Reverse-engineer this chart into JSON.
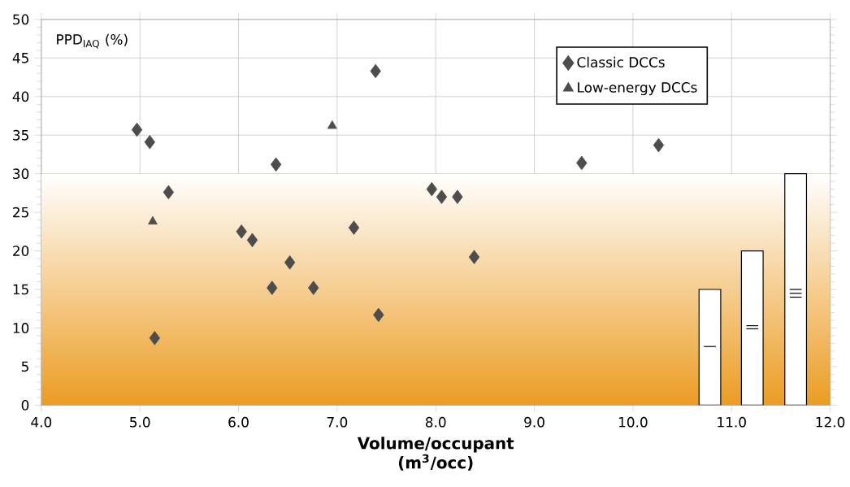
{
  "chart_data": {
    "type": "scatter",
    "xlabel": "Volume/occupant (m$^{3}$/occ)",
    "ylabel": "PPD$_{IAQ}$ (%)",
    "xlim": [
      4,
      12
    ],
    "ylim": [
      0,
      50
    ],
    "xticks": [
      {
        "value": 4,
        "label": "4.0"
      },
      {
        "value": 5,
        "label": "5.0"
      },
      {
        "value": 6,
        "label": "6.0"
      },
      {
        "value": 7,
        "label": "7.0"
      },
      {
        "value": 8,
        "label": "8.0"
      },
      {
        "value": 9,
        "label": "9.0"
      },
      {
        "value": 10,
        "label": "10.0"
      },
      {
        "value": 11,
        "label": "11.0"
      },
      {
        "value": 12,
        "label": "12.0"
      }
    ],
    "yticks": [
      0,
      5,
      10,
      15,
      20,
      25,
      30,
      35,
      40,
      45,
      50
    ],
    "grid": true,
    "legend": "top right",
    "bands": [
      {
        "axis": "y",
        "from": 0,
        "to": 30,
        "color": "#eb9c22"
      }
    ],
    "series": [
      {
        "name": "Classic DCCs",
        "color": "#4d4d4d",
        "marker": "diamond",
        "x": [
          4.97,
          5.1,
          5.29,
          5.15,
          6.03,
          6.14,
          6.38,
          6.52,
          6.34,
          6.76,
          7.17,
          7.39,
          7.42,
          7.96,
          8.06,
          8.22,
          8.39,
          9.48,
          10.26
        ],
        "values": [
          35.7,
          34.1,
          27.6,
          8.7,
          22.5,
          21.4,
          31.2,
          18.5,
          15.2,
          15.2,
          23.0,
          43.3,
          11.7,
          28.0,
          27.0,
          27.0,
          19.2,
          31.4,
          33.7
        ]
      },
      {
        "name": "Low-energy DCCs",
        "color": "#4d4d4d",
        "marker": "triangle",
        "x": [
          6.95,
          5.13
        ],
        "values": [
          36.2,
          23.8
        ]
      },
      {
        "type": "bar",
        "color": "#ffffff",
        "x": [
          10.78,
          11.21,
          11.65
        ],
        "values": [
          15,
          20,
          30
        ]
      }
    ]
  }
}
